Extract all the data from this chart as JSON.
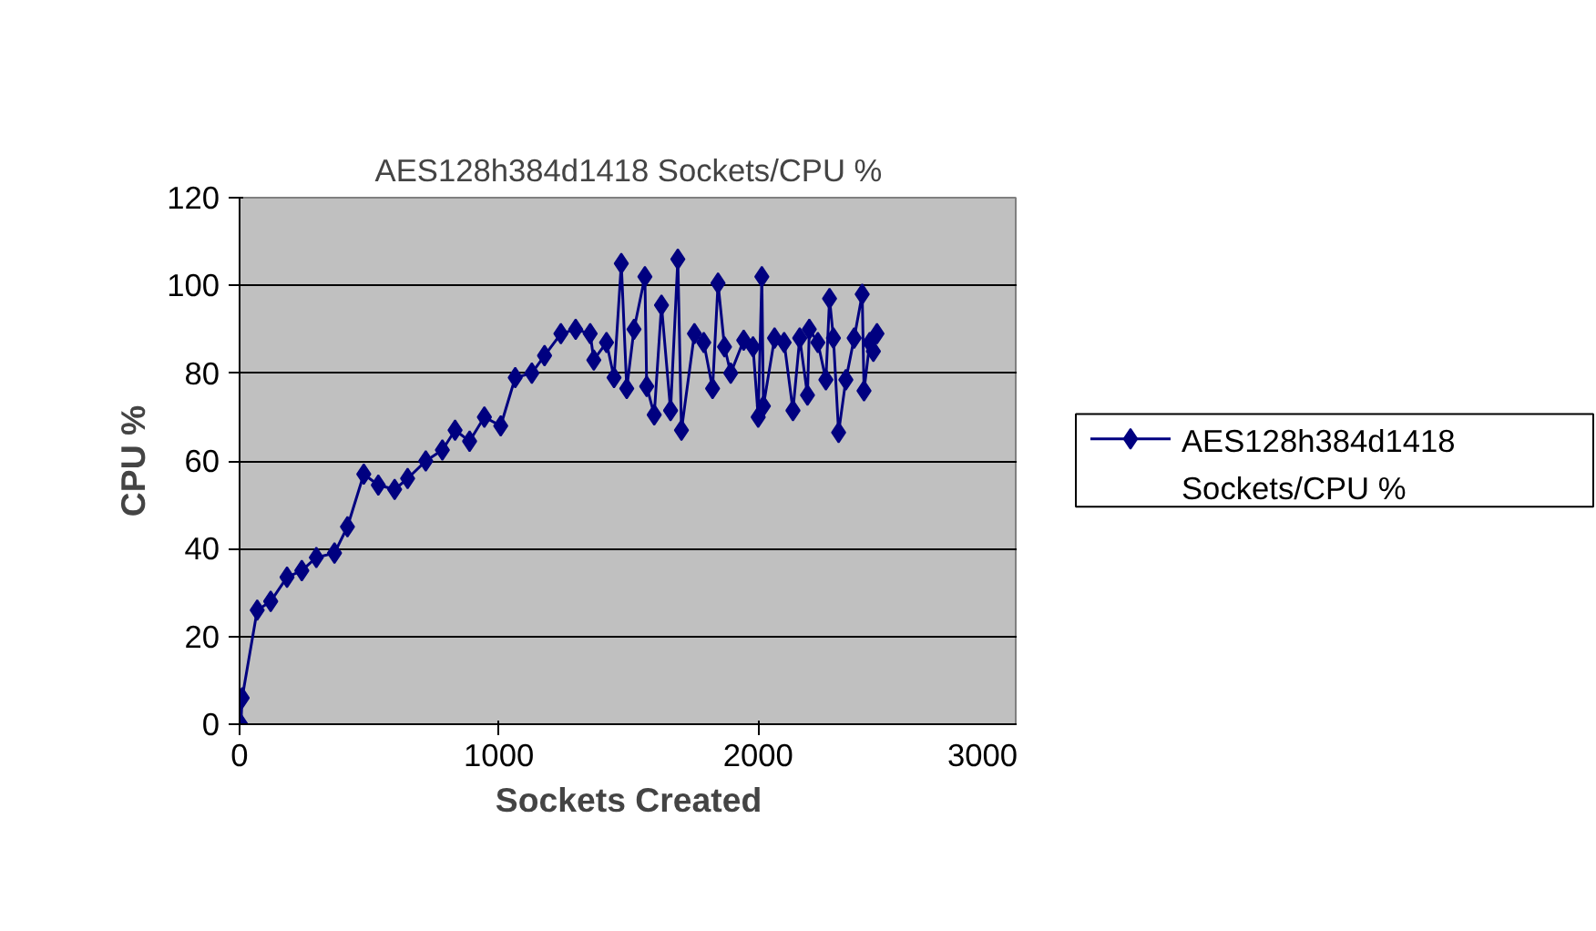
{
  "chart_data": {
    "type": "line",
    "title": "AES128h384d1418 Sockets/CPU %",
    "xlabel": "Sockets Created",
    "ylabel": "CPU %",
    "xlim": [
      0,
      3000
    ],
    "xticks": [
      0,
      1000,
      2000,
      3000
    ],
    "ylim": [
      0,
      120
    ],
    "yticks": [
      0,
      20,
      40,
      60,
      80,
      100,
      120
    ],
    "grid": "y",
    "legend": "right",
    "marker": "diamond",
    "line_style": "solid",
    "series": [
      {
        "name": "AES128h384d1418 Sockets/CPU %",
        "color": "#000080",
        "x": [
          5,
          10,
          68,
          120,
          183,
          240,
          296,
          366,
          416,
          479,
          535,
          598,
          648,
          718,
          782,
          831,
          887,
          944,
          1007,
          1063,
          1127,
          1176,
          1239,
          1296,
          1352,
          1366,
          1415,
          1444,
          1472,
          1493,
          1521,
          1563,
          1570,
          1599,
          1627,
          1662,
          1690,
          1704,
          1754,
          1790,
          1824,
          1845,
          1870,
          1894,
          1944,
          1980,
          2000,
          2014,
          2020,
          2063,
          2100,
          2134,
          2160,
          2190,
          2197,
          2230,
          2261,
          2275,
          2290,
          2310,
          2338,
          2370,
          2401,
          2408,
          2430,
          2444,
          2458
        ],
        "values": [
          0,
          6,
          26,
          28,
          33.5,
          35,
          38,
          39,
          45,
          57,
          54.5,
          53.5,
          56,
          60,
          62.5,
          67,
          64.5,
          70,
          68,
          79,
          80,
          84,
          89,
          90,
          89,
          83,
          87,
          79,
          105,
          76.5,
          90,
          102,
          77,
          70.5,
          95.5,
          71.5,
          106,
          67,
          89,
          87,
          76.5,
          100.5,
          86,
          80,
          87.5,
          86,
          70,
          102,
          72.5,
          88,
          87,
          71.5,
          88,
          75,
          90,
          87,
          78.5,
          97,
          88,
          66.5,
          78.5,
          88,
          98,
          76,
          87,
          85,
          89
        ]
      }
    ]
  }
}
